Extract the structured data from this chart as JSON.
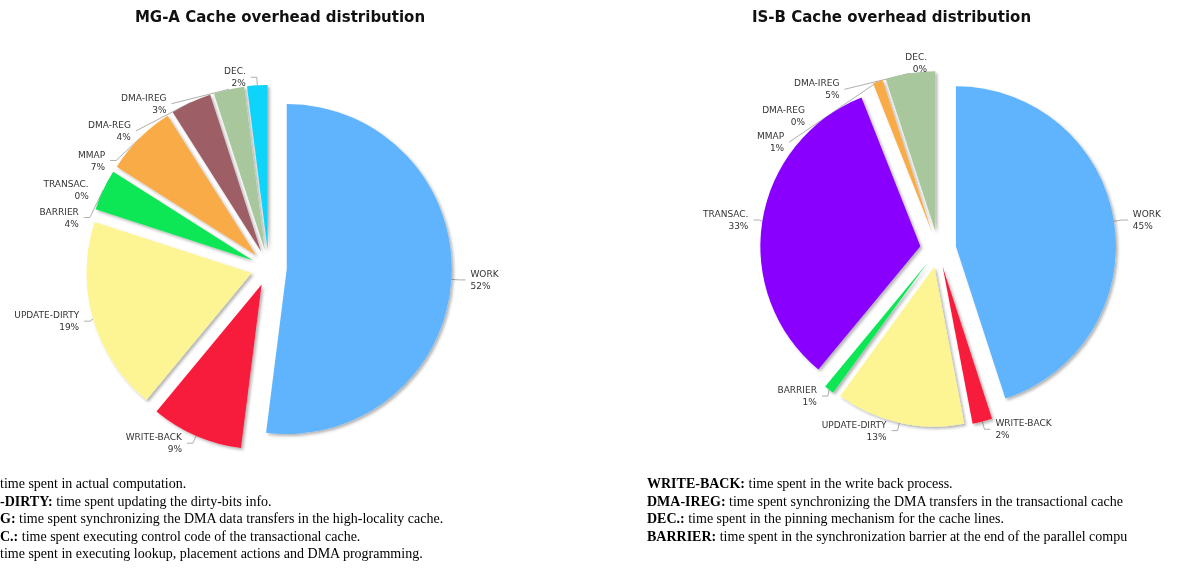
{
  "chart_data": [
    {
      "type": "pie",
      "title": "MG-A Cache overhead distribution",
      "categories": [
        "WORK",
        "WRITE-BACK",
        "UPDATE-DIRTY",
        "BARRIER",
        "TRANSAC.",
        "MMAP",
        "DMA-REG",
        "DMA-IREG",
        "DEC."
      ],
      "values": [
        52,
        9,
        19,
        4,
        0,
        7,
        4,
        3,
        2
      ],
      "value_labels": [
        "52%",
        "9%",
        "19%",
        "4%",
        "0%",
        "7%",
        "4%",
        "3%",
        "2%"
      ],
      "colors": [
        "#5fb4fd",
        "#f71f3b",
        "#fdf594",
        "#0ce654",
        "#8a00ff",
        "#f9ab47",
        "#9d5f65",
        "#a8c79c",
        "#0cd4f8"
      ],
      "annotations": [
        "time spent in actual computation.",
        "-DIRTY: time spent updating the dirty-bits info.",
        "G: time spent synchronizing the DMA data transfers in the high-locality cache.",
        "C.: time spent executing control code of the transactional cache.",
        "time spent in executing lookup, placement actions and DMA programming."
      ]
    },
    {
      "type": "pie",
      "title": "IS-B Cache overhead distribution",
      "categories": [
        "WORK",
        "WRITE-BACK",
        "UPDATE-DIRTY",
        "BARRIER",
        "TRANSAC.",
        "MMAP",
        "DMA-REG",
        "DMA-IREG",
        "DEC."
      ],
      "values": [
        45,
        2,
        13,
        1,
        33,
        1,
        0,
        5,
        0
      ],
      "value_labels": [
        "45%",
        "2%",
        "13%",
        "1%",
        "33%",
        "1%",
        "0%",
        "5%",
        "0%"
      ],
      "colors": [
        "#5fb4fd",
        "#f71f3b",
        "#fdf594",
        "#0ce654",
        "#8a00ff",
        "#f9ab47",
        "#9d5f65",
        "#a8c79c",
        "#0cd4f8"
      ],
      "annotations": [
        "WRITE-BACK: time spent in the write back process.",
        "DMA-IREG: time spent synchronizing the DMA transfers in the transactional cache",
        "DEC.: time spent in the pinning mechanism for the cache lines.",
        "BARRIER: time spent in the synchronization barrier at the end of the parallel compu"
      ]
    }
  ]
}
